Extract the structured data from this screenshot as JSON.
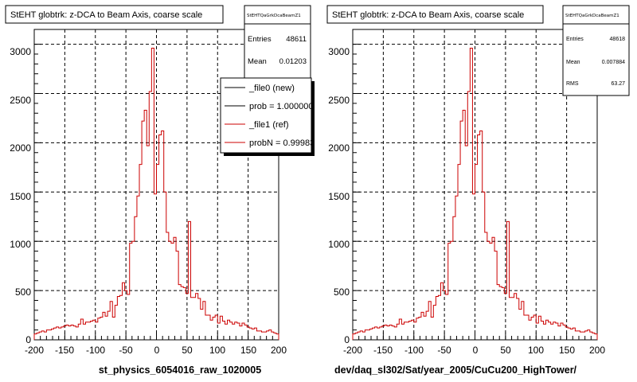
{
  "colors": {
    "new_line": "#000000",
    "ref_line": "#cc0000",
    "frame": "#000000",
    "grid": "#000000"
  },
  "footer_text": "",
  "chart_data": [
    {
      "type": "line",
      "title": "StEHT globtrk: z-DCA to Beam Axis, coarse scale",
      "xlabel": "st_physics_6054016_raw_1020005",
      "ylabel": "",
      "xlim": [
        -200,
        200
      ],
      "ylim": [
        0,
        3150
      ],
      "x_ticks": [
        -200,
        -150,
        -100,
        -50,
        0,
        50,
        100,
        150,
        200
      ],
      "y_ticks": [
        0,
        500,
        1000,
        1500,
        2000,
        2500,
        3000
      ],
      "grid": true,
      "stats": {
        "name": "StEHTQaGrkDcaBeamZ1",
        "rows": [
          {
            "label": "Entries",
            "value": "48611"
          },
          {
            "label": "Mean",
            "value": "0.01203"
          }
        ]
      },
      "legend": {
        "position": "top-right",
        "entries": [
          "_file0 (new)",
          "prob = 1.000000",
          "_file1 (ref)",
          "probN = 0.99983"
        ]
      },
      "x_centers": [
        -198,
        -194,
        -190,
        -186,
        -182,
        -178,
        -174,
        -170,
        -166,
        -162,
        -158,
        -154,
        -150,
        -146,
        -142,
        -138,
        -134,
        -130,
        -126,
        -122,
        -118,
        -114,
        -110,
        -106,
        -102,
        -98,
        -94,
        -90,
        -86,
        -82,
        -78,
        -74,
        -70,
        -66,
        -62,
        -58,
        -54,
        -50,
        -46,
        -42,
        -38,
        -34,
        -30,
        -26,
        -22,
        -18,
        -14,
        -10,
        -6,
        -2,
        2,
        6,
        10,
        14,
        18,
        22,
        26,
        30,
        34,
        38,
        42,
        46,
        50,
        54,
        58,
        62,
        66,
        70,
        74,
        78,
        82,
        86,
        90,
        94,
        98,
        102,
        106,
        110,
        114,
        118,
        122,
        126,
        130,
        134,
        138,
        142,
        146,
        150,
        154,
        158,
        162,
        166,
        170,
        174,
        178,
        182,
        186,
        190,
        194,
        198
      ],
      "series": [
        {
          "name": "_file0 (new)",
          "values": [
            60,
            70,
            80,
            90,
            80,
            100,
            100,
            110,
            120,
            130,
            120,
            130,
            140,
            150,
            140,
            150,
            140,
            130,
            160,
            210,
            160,
            180,
            180,
            190,
            200,
            180,
            220,
            230,
            280,
            240,
            290,
            390,
            230,
            350,
            440,
            450,
            580,
            500,
            460,
            980,
            1000,
            1250,
            1460,
            1780,
            2220,
            2330,
            1970,
            2520,
            2960,
            1480,
            1780,
            2080,
            2120,
            1500,
            1090,
            1000,
            980,
            1040,
            900,
            560,
            540,
            530,
            470,
            1200,
            430,
            430,
            470,
            420,
            310,
            390,
            250,
            250,
            200,
            230,
            250,
            170,
            240,
            190,
            160,
            200,
            180,
            160,
            180,
            170,
            140,
            170,
            150,
            130,
            120,
            110,
            120,
            90,
            90,
            80,
            80,
            90,
            100,
            80,
            70,
            60
          ]
        },
        {
          "name": "_file1 (ref)",
          "values": [
            60,
            70,
            80,
            90,
            80,
            100,
            100,
            110,
            120,
            130,
            120,
            130,
            140,
            150,
            140,
            150,
            140,
            130,
            160,
            210,
            160,
            180,
            180,
            190,
            200,
            180,
            220,
            230,
            280,
            240,
            290,
            390,
            230,
            350,
            440,
            450,
            580,
            500,
            460,
            980,
            1000,
            1250,
            1460,
            1780,
            2220,
            2330,
            1970,
            2520,
            2960,
            1480,
            1780,
            2080,
            2120,
            1500,
            1090,
            1000,
            980,
            1040,
            900,
            560,
            540,
            530,
            470,
            1200,
            430,
            430,
            470,
            420,
            310,
            390,
            250,
            250,
            200,
            230,
            250,
            170,
            240,
            190,
            160,
            200,
            180,
            160,
            180,
            170,
            140,
            170,
            150,
            130,
            120,
            110,
            120,
            90,
            90,
            80,
            80,
            90,
            100,
            80,
            70,
            60
          ]
        }
      ]
    },
    {
      "type": "line",
      "title": "StEHT globtrk: z-DCA to Beam Axis, coarse scale",
      "xlabel": "dev/daq_sl302/Sat/year_2005/CuCu200_HighTower/",
      "ylabel": "",
      "xlim": [
        -200,
        200
      ],
      "ylim": [
        0,
        3150
      ],
      "x_ticks": [
        -200,
        -150,
        -100,
        -50,
        0,
        50,
        100,
        150,
        200
      ],
      "y_ticks": [
        0,
        500,
        1000,
        1500,
        2000,
        2500,
        3000
      ],
      "grid": true,
      "stats": {
        "name": "StEHTQaGrkDcaBeamZ1",
        "rows": [
          {
            "label": "Entries",
            "value": "48618"
          },
          {
            "label": "Mean",
            "value": "0.007884"
          },
          {
            "label": "RMS",
            "value": "63.27"
          }
        ]
      },
      "x_centers": [
        -198,
        -194,
        -190,
        -186,
        -182,
        -178,
        -174,
        -170,
        -166,
        -162,
        -158,
        -154,
        -150,
        -146,
        -142,
        -138,
        -134,
        -130,
        -126,
        -122,
        -118,
        -114,
        -110,
        -106,
        -102,
        -98,
        -94,
        -90,
        -86,
        -82,
        -78,
        -74,
        -70,
        -66,
        -62,
        -58,
        -54,
        -50,
        -46,
        -42,
        -38,
        -34,
        -30,
        -26,
        -22,
        -18,
        -14,
        -10,
        -6,
        -2,
        2,
        6,
        10,
        14,
        18,
        22,
        26,
        30,
        34,
        38,
        42,
        46,
        50,
        54,
        58,
        62,
        66,
        70,
        74,
        78,
        82,
        86,
        90,
        94,
        98,
        102,
        106,
        110,
        114,
        118,
        122,
        126,
        130,
        134,
        138,
        142,
        146,
        150,
        154,
        158,
        162,
        166,
        170,
        174,
        178,
        182,
        186,
        190,
        194,
        198
      ],
      "series": [
        {
          "name": "",
          "values": [
            60,
            70,
            80,
            90,
            80,
            100,
            100,
            110,
            120,
            130,
            120,
            130,
            140,
            150,
            140,
            150,
            140,
            130,
            160,
            210,
            160,
            180,
            180,
            190,
            200,
            180,
            220,
            230,
            280,
            240,
            290,
            390,
            230,
            350,
            440,
            450,
            580,
            500,
            460,
            980,
            1000,
            1250,
            1460,
            1780,
            2220,
            2330,
            1970,
            2520,
            2960,
            1480,
            1780,
            2080,
            2120,
            1500,
            1090,
            1000,
            980,
            1040,
            900,
            560,
            540,
            530,
            470,
            1200,
            430,
            430,
            470,
            420,
            310,
            390,
            250,
            250,
            200,
            230,
            250,
            170,
            240,
            190,
            160,
            200,
            180,
            160,
            180,
            170,
            140,
            170,
            150,
            130,
            120,
            110,
            120,
            90,
            90,
            80,
            80,
            90,
            100,
            80,
            70,
            60
          ]
        }
      ]
    }
  ]
}
